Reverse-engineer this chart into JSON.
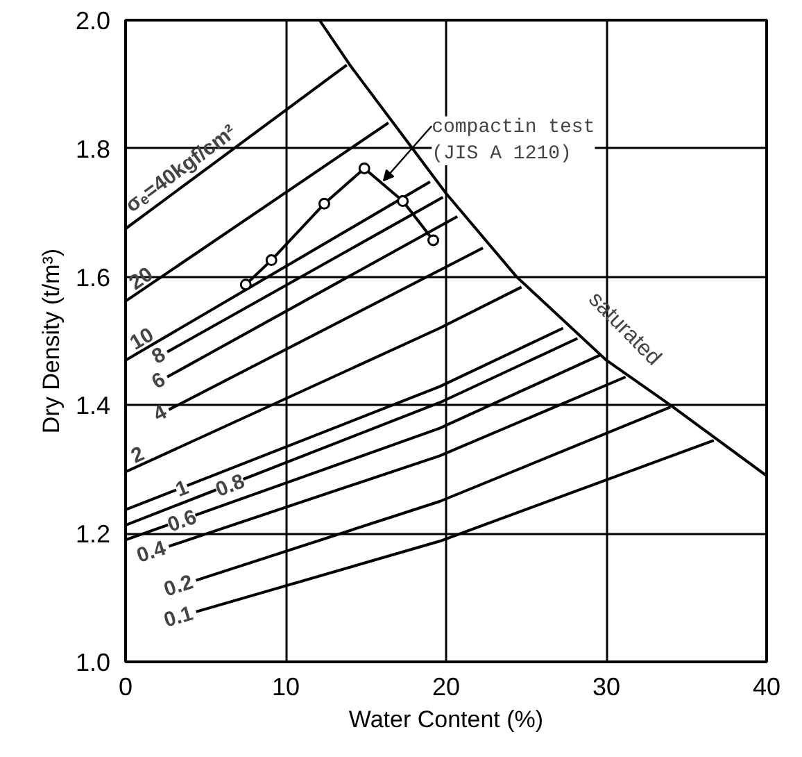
{
  "chart_data": {
    "type": "line",
    "xlabel": "Water Content (%)",
    "ylabel": "Dry Density (t/m³)",
    "xlim": [
      0,
      40
    ],
    "ylim": [
      1.0,
      2.0
    ],
    "xticks": [
      0,
      10,
      20,
      30,
      40
    ],
    "yticks": [
      {
        "value": 1.0,
        "label": "1.0"
      },
      1.2,
      1.4,
      1.6,
      1.8,
      {
        "value": 2.0,
        "label": "2.0"
      }
    ],
    "grid": true,
    "marker": "none",
    "line_style": "solid",
    "series": [
      {
        "name": "saturated",
        "color": "#000000",
        "x": [
          12.1,
          14,
          17.9,
          20,
          24.4,
          30,
          34,
          40
        ],
        "values": [
          2.0,
          1.93,
          1.8,
          1.73,
          1.6,
          1.47,
          1.4,
          1.29
        ]
      },
      {
        "name": "σₑ=40kgf/cm²",
        "color": "#000000",
        "x": [
          0,
          13.8
        ],
        "values": [
          1.675,
          1.93
        ]
      },
      {
        "name": "20",
        "color": "#000000",
        "x": [
          0,
          16.4
        ],
        "values": [
          1.562,
          1.84
        ]
      },
      {
        "name": "10",
        "color": "#000000",
        "x": [
          0,
          19.0
        ],
        "values": [
          1.47,
          1.748
        ]
      },
      {
        "name": "8",
        "color": "#000000",
        "x": [
          2.6,
          19.8
        ],
        "values": [
          1.483,
          1.724
        ]
      },
      {
        "name": "6",
        "color": "#000000",
        "x": [
          2.6,
          20.7
        ],
        "values": [
          1.444,
          1.694
        ]
      },
      {
        "name": "4",
        "color": "#000000",
        "x": [
          2.7,
          22.3
        ],
        "values": [
          1.393,
          1.645
        ]
      },
      {
        "name": "2",
        "color": "#000000",
        "x": [
          0,
          19.6,
          24.7
        ],
        "values": [
          1.296,
          1.52,
          1.584
        ]
      },
      {
        "name": "1",
        "color": "#000000",
        "x": [
          0,
          19.6,
          27.3
        ],
        "values": [
          1.237,
          1.429,
          1.52
        ]
      },
      {
        "name": "0.8",
        "color": "#000000",
        "x": [
          0,
          19.6,
          28.2
        ],
        "values": [
          1.213,
          1.404,
          1.504
        ]
      },
      {
        "name": "0.6",
        "color": "#000000",
        "x": [
          0,
          19.6,
          29.6
        ],
        "values": [
          1.19,
          1.364,
          1.478
        ]
      },
      {
        "name": "0.4",
        "color": "#000000",
        "x": [
          2.7,
          19.6,
          31.2
        ],
        "values": [
          1.18,
          1.321,
          1.444
        ]
      },
      {
        "name": "0.2",
        "color": "#000000",
        "x": [
          4.4,
          19.6,
          34.0
        ],
        "values": [
          1.127,
          1.25,
          1.397
        ]
      },
      {
        "name": "0.1",
        "color": "#000000",
        "x": [
          4.4,
          19.6,
          36.7
        ],
        "values": [
          1.078,
          1.188,
          1.345
        ]
      },
      {
        "color": "#000000",
        "marker": "circle",
        "x": [
          7.5,
          9.1,
          12.4,
          14.9,
          17.3,
          19.2
        ],
        "values": [
          1.588,
          1.626,
          1.714,
          1.769,
          1.718,
          1.657
        ]
      }
    ],
    "annotations": [
      {
        "text": "compactin test\n(JIS A 1210)",
        "x": 16.1,
        "y": 1.75
      }
    ]
  }
}
